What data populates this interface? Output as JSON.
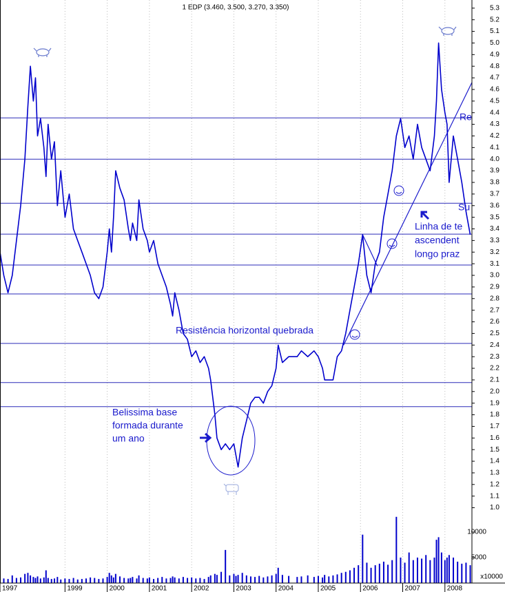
{
  "chart_data": {
    "type": "line",
    "title": "1 EDP (3.460, 3.500, 3.270, 3.350)",
    "x": [
      1997.46,
      1997.55,
      1997.65,
      1997.75,
      1997.85,
      1997.95,
      1998.05,
      1998.12,
      1998.18,
      1998.25,
      1998.3,
      1998.35,
      1998.42,
      1998.5,
      1998.55,
      1998.6,
      1998.68,
      1998.75,
      1998.82,
      1998.9,
      1999.0,
      1999.1,
      1999.2,
      1999.3,
      1999.4,
      1999.5,
      1999.6,
      1999.7,
      1999.8,
      1999.9,
      2000.0,
      2000.05,
      2000.1,
      2000.15,
      2000.2,
      2000.3,
      2000.4,
      2000.5,
      2000.55,
      2000.6,
      2000.7,
      2000.75,
      2000.85,
      2000.95,
      2001.0,
      2001.1,
      2001.2,
      2001.3,
      2001.4,
      2001.5,
      2001.55,
      2001.6,
      2001.7,
      2001.8,
      2001.9,
      2002.0,
      2002.1,
      2002.2,
      2002.3,
      2002.4,
      2002.45,
      2002.55,
      2002.6,
      2002.7,
      2002.8,
      2002.9,
      2003.0,
      2003.05,
      2003.1,
      2003.2,
      2003.3,
      2003.4,
      2003.5,
      2003.6,
      2003.7,
      2003.8,
      2003.9,
      2004.0,
      2004.05,
      2004.15,
      2004.3,
      2004.5,
      2004.6,
      2004.75,
      2004.9,
      2005.0,
      2005.1,
      2005.15,
      2005.25,
      2005.35,
      2005.45,
      2005.55,
      2005.65,
      2005.75,
      2005.85,
      2005.95,
      2006.05,
      2006.15,
      2006.25,
      2006.35,
      2006.45,
      2006.55,
      2006.65,
      2006.75,
      2006.85,
      2006.95,
      2007.05,
      2007.15,
      2007.25,
      2007.35,
      2007.45,
      2007.55,
      2007.65,
      2007.75,
      2007.8,
      2007.85,
      2007.92,
      2008.0,
      2008.05,
      2008.1,
      2008.2,
      2008.3,
      2008.4,
      2008.5,
      2008.6
    ],
    "series": [
      {
        "color": "#0000cc",
        "values": [
          3.2,
          3.0,
          2.85,
          3.0,
          3.3,
          3.6,
          4.0,
          4.45,
          4.8,
          4.5,
          4.7,
          4.2,
          4.35,
          4.1,
          3.85,
          4.3,
          4.0,
          4.15,
          3.6,
          3.9,
          3.5,
          3.7,
          3.4,
          3.3,
          3.2,
          3.1,
          3.0,
          2.85,
          2.8,
          2.9,
          3.2,
          3.4,
          3.2,
          3.5,
          3.9,
          3.75,
          3.65,
          3.4,
          3.3,
          3.45,
          3.3,
          3.65,
          3.4,
          3.3,
          3.2,
          3.3,
          3.1,
          3.0,
          2.9,
          2.75,
          2.65,
          2.85,
          2.7,
          2.5,
          2.45,
          2.3,
          2.35,
          2.25,
          2.3,
          2.2,
          2.1,
          1.8,
          1.6,
          1.5,
          1.55,
          1.5,
          1.55,
          1.45,
          1.35,
          1.6,
          1.75,
          1.9,
          1.95,
          1.95,
          1.9,
          2.0,
          2.05,
          2.2,
          2.4,
          2.25,
          2.3,
          2.3,
          2.35,
          2.3,
          2.35,
          2.3,
          2.2,
          2.1,
          2.1,
          2.1,
          2.3,
          2.35,
          2.5,
          2.7,
          2.9,
          3.1,
          3.35,
          3.0,
          2.85,
          3.1,
          3.2,
          3.5,
          3.7,
          3.9,
          4.2,
          4.35,
          4.1,
          4.2,
          4.0,
          4.3,
          4.1,
          4.0,
          3.9,
          4.2,
          4.5,
          5.0,
          4.6,
          4.4,
          4.3,
          3.8,
          4.2,
          4.0,
          3.8,
          3.55,
          3.35
        ]
      },
      {
        "type": "bar",
        "axis": "y2",
        "color": "#0000cc",
        "values": [
          1200,
          900,
          800,
          1500,
          1000,
          1100,
          1800,
          2000,
          1500,
          1200,
          1000,
          1300,
          900,
          1100,
          2500,
          1000,
          800,
          900,
          1200,
          700,
          900,
          800,
          1000,
          700,
          800,
          900,
          1100,
          1000,
          800,
          900,
          1200,
          2000,
          1500,
          1100,
          1800,
          1300,
          1000,
          900,
          1000,
          1200,
          900,
          1500,
          1000,
          900,
          1100,
          800,
          1000,
          1200,
          900,
          1000,
          1300,
          1100,
          900,
          1200,
          1000,
          1100,
          900,
          1000,
          800,
          1200,
          1500,
          1800,
          1600,
          2200,
          6500,
          1500,
          1800,
          1400,
          1600,
          2000,
          1500,
          1300,
          1200,
          1400,
          1100,
          1300,
          1500,
          1800,
          3000,
          1600,
          1400,
          1200,
          1300,
          1500,
          1200,
          1400,
          1100,
          1600,
          1300,
          1500,
          1700,
          2000,
          2200,
          2500,
          3000,
          3500,
          9500,
          4000,
          3000,
          3500,
          3800,
          4200,
          3600,
          4500,
          13000,
          5000,
          4000,
          6000,
          4500,
          5000,
          4800,
          5500,
          4500,
          5000,
          8500,
          9000,
          6000,
          4500,
          5000,
          5500,
          5000,
          4200,
          3800,
          4000,
          3500
        ]
      }
    ],
    "xlim": [
      1997.46,
      2008.64
    ],
    "xticks": [
      {
        "value": 1997.46,
        "label": "1997"
      },
      1999,
      2000,
      2001,
      2002,
      2003,
      2004,
      2005,
      2006,
      2007,
      2008
    ],
    "ylim": [
      0.95,
      5.37
    ],
    "yticks": [
      {
        "value": 1,
        "label": "1.0"
      },
      1.1,
      1.2,
      1.3,
      1.4,
      1.5,
      1.6,
      1.7,
      1.8,
      1.9,
      {
        "value": 2,
        "label": "2.0"
      },
      2.1,
      2.2,
      2.3,
      2.4,
      2.5,
      2.6,
      2.7,
      2.8,
      2.9,
      {
        "value": 3,
        "label": "3.0"
      },
      3.1,
      3.2,
      3.3,
      3.4,
      3.5,
      3.6,
      3.7,
      3.8,
      3.9,
      {
        "value": 4,
        "label": "4.0"
      },
      4.1,
      4.2,
      4.3,
      4.4,
      4.5,
      4.6,
      4.7,
      4.8,
      4.9,
      {
        "value": 5,
        "label": "5.0"
      },
      5.1,
      5.2,
      5.3
    ],
    "y2lim": [
      0,
      15000
    ],
    "y2ticks": [
      5000,
      10000
    ],
    "y2_label": "x10000",
    "grid": true,
    "hlines": [
      4.355,
      4.0,
      3.621,
      3.355,
      3.089,
      2.84,
      2.414,
      2.077,
      1.87
    ],
    "trendlines": [
      {
        "x": [
          2005.6,
          2008.64
        ],
        "values": [
          2.4,
          4.66
        ]
      },
      {
        "x": [
          2006.05,
          2006.4
        ],
        "values": [
          3.35,
          3.08
        ]
      }
    ],
    "annotations": [
      "Resistência horizontal quebrada",
      "Belissima base",
      "formada durante",
      "um ano",
      "Linha de te",
      "ascendent",
      "longo praz",
      "Re",
      "Su"
    ]
  }
}
